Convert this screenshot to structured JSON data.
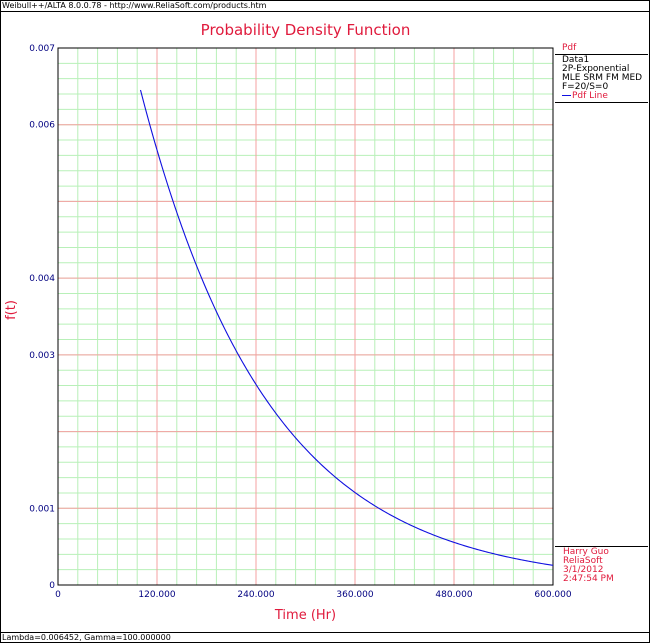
{
  "window": {
    "header_text": "Weibull++/ALTA 8.0.0.78 - http://www.ReliaSoft.com/products.htm",
    "footer_text": "Lambda=0.006452, Gamma=100.000000"
  },
  "legend": {
    "header": "Pdf",
    "lines": [
      "Data1",
      "2P-Exponential",
      "MLE SRM FM MED",
      "F=20/S=0"
    ],
    "series_label": "Pdf Line"
  },
  "signature": {
    "lines": [
      "Harry Guo",
      "ReliaSoft",
      "3/1/2012",
      "2:47:54 PM"
    ]
  },
  "colors": {
    "curve": "#1010e0",
    "title": "#e01a3c",
    "tick": "#000080",
    "grid_major": "#f4a0a0",
    "grid_minor": "#b8f0b8"
  },
  "chart_data": {
    "type": "line",
    "title": "Probability Density Function",
    "xlabel": "Time (Hr)",
    "ylabel": "f(t)",
    "xlim": [
      0,
      600
    ],
    "ylim": [
      0,
      0.007
    ],
    "x_ticks": [
      0,
      120,
      240,
      360,
      480,
      600
    ],
    "x_tick_labels": [
      "0",
      "120.000",
      "240.000",
      "360.000",
      "480.000",
      "600.000"
    ],
    "y_ticks": [
      0,
      0.001,
      0.003,
      0.004,
      0.006,
      0.007
    ],
    "y_tick_labels": [
      "0",
      "0.001",
      "0.003",
      "0.004",
      "0.006",
      "0.007"
    ],
    "grid": true,
    "legend_position": "right",
    "series": [
      {
        "name": "Pdf Line",
        "lambda": 0.006452,
        "gamma": 100,
        "x": [
          100,
          120,
          140,
          160,
          180,
          200,
          240,
          280,
          320,
          360,
          400,
          440,
          480,
          520,
          560,
          600
        ],
        "y": [
          0.00645,
          0.00568,
          0.005,
          0.00441,
          0.00388,
          0.00338,
          0.00262,
          0.00203,
          0.00158,
          0.00122,
          0.00093,
          0.00072,
          0.00055,
          0.00043,
          0.00033,
          0.00026
        ]
      }
    ]
  }
}
